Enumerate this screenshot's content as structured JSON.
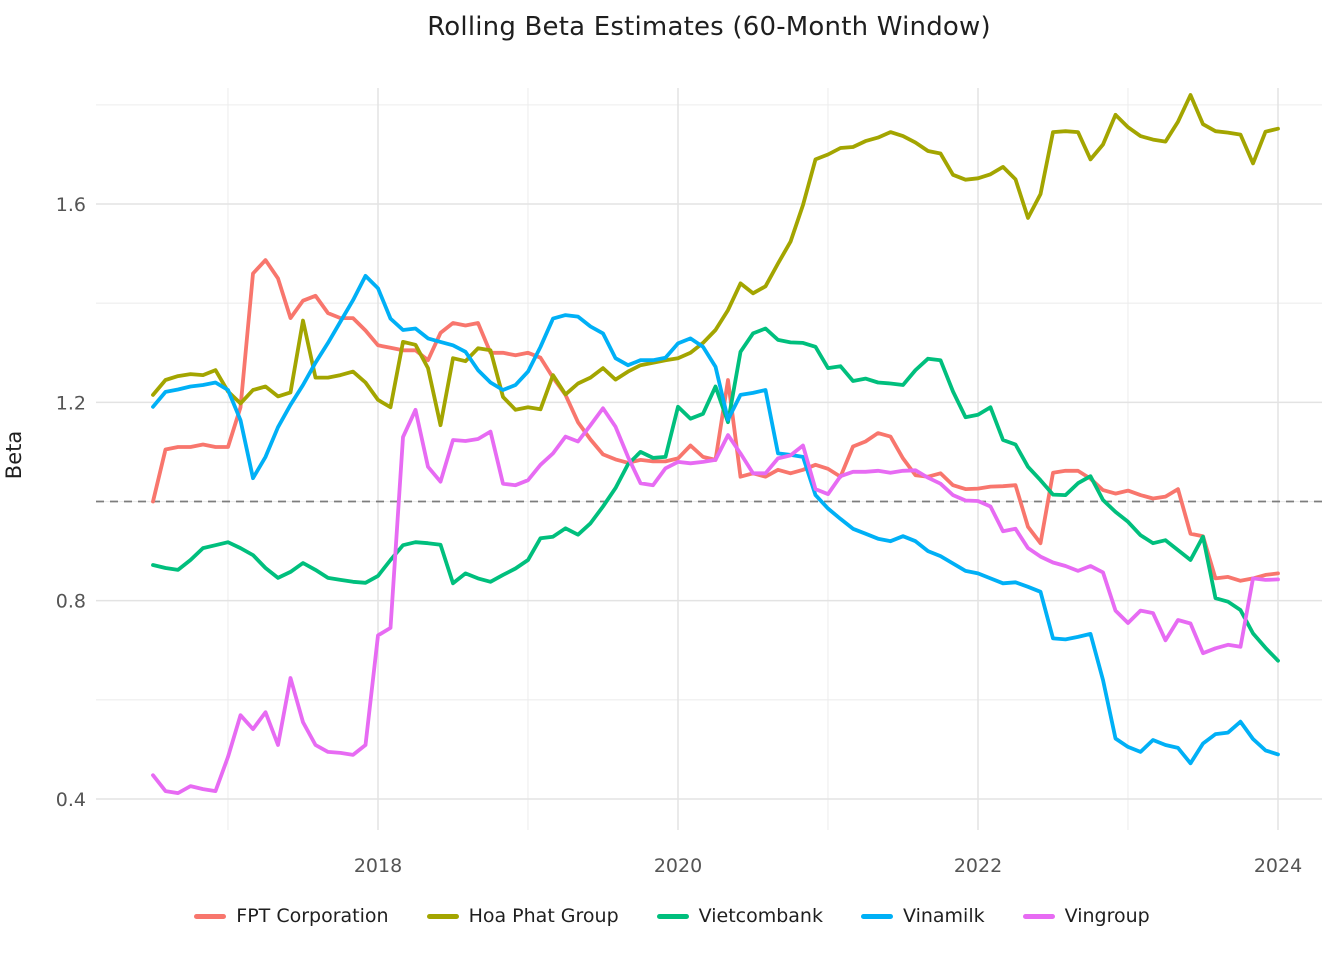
{
  "chart_data": {
    "type": "line",
    "title": "Rolling Beta Estimates (60-Month Window)",
    "xlabel": "",
    "ylabel": "Beta",
    "grid": true,
    "legend_position": "bottom",
    "x_start_year": 2016.5,
    "x_step_months": 1,
    "x_axis": {
      "tick_values": [
        2018,
        2020,
        2022,
        2024
      ],
      "tick_labels": [
        "2018",
        "2020",
        "2022",
        "2024"
      ],
      "minor_tick_values": [
        2017,
        2019,
        2021,
        2023
      ],
      "range": [
        2016.12,
        2024.29
      ]
    },
    "y_axis": {
      "tick_values": [
        0.4,
        0.8,
        1.2,
        1.6
      ],
      "tick_labels": [
        "0.4",
        "0.8",
        "1.2",
        "1.6"
      ],
      "minor_tick_values": [
        0.6,
        1.0,
        1.4,
        1.8
      ],
      "range": [
        0.337,
        1.834
      ]
    },
    "reference_line": {
      "value": 1.0,
      "style": "dashed",
      "color": "#7d7d7d"
    },
    "series": [
      {
        "name": "FPT Corporation",
        "color": "#F8766D",
        "values": [
          1.0,
          1.105,
          1.11,
          1.11,
          1.115,
          1.11,
          1.11,
          1.19,
          1.46,
          1.487,
          1.45,
          1.37,
          1.405,
          1.415,
          1.38,
          1.37,
          1.37,
          1.345,
          1.315,
          1.31,
          1.305,
          1.305,
          1.285,
          1.34,
          1.36,
          1.355,
          1.36,
          1.3,
          1.3,
          1.295,
          1.3,
          1.29,
          1.25,
          1.215,
          1.16,
          1.125,
          1.095,
          1.085,
          1.078,
          1.084,
          1.081,
          1.081,
          1.087,
          1.113,
          1.09,
          1.084,
          1.245,
          1.05,
          1.057,
          1.05,
          1.064,
          1.057,
          1.064,
          1.074,
          1.066,
          1.05,
          1.111,
          1.121,
          1.138,
          1.131,
          1.087,
          1.053,
          1.05,
          1.057,
          1.033,
          1.025,
          1.026,
          1.03,
          1.031,
          1.033,
          0.949,
          0.916,
          1.058,
          1.062,
          1.062,
          1.046,
          1.023,
          1.016,
          1.022,
          1.013,
          1.006,
          1.01,
          1.025,
          0.935,
          0.93,
          0.845,
          0.848,
          0.84,
          0.845,
          0.852,
          0.855
        ]
      },
      {
        "name": "Hoa Phat Group",
        "color": "#A3A500",
        "values": [
          1.215,
          1.245,
          1.253,
          1.257,
          1.255,
          1.265,
          1.222,
          1.198,
          1.225,
          1.232,
          1.212,
          1.22,
          1.365,
          1.25,
          1.25,
          1.255,
          1.262,
          1.24,
          1.205,
          1.19,
          1.322,
          1.316,
          1.269,
          1.154,
          1.289,
          1.283,
          1.309,
          1.305,
          1.211,
          1.185,
          1.19,
          1.186,
          1.255,
          1.216,
          1.238,
          1.25,
          1.269,
          1.246,
          1.262,
          1.275,
          1.28,
          1.285,
          1.289,
          1.3,
          1.32,
          1.346,
          1.386,
          1.44,
          1.42,
          1.434,
          1.48,
          1.524,
          1.598,
          1.69,
          1.7,
          1.713,
          1.715,
          1.727,
          1.734,
          1.745,
          1.737,
          1.724,
          1.707,
          1.702,
          1.659,
          1.649,
          1.652,
          1.66,
          1.675,
          1.65,
          1.572,
          1.62,
          1.745,
          1.747,
          1.745,
          1.69,
          1.72,
          1.78,
          1.755,
          1.737,
          1.73,
          1.726,
          1.766,
          1.82,
          1.761,
          1.747,
          1.744,
          1.74,
          1.682,
          1.746,
          1.752
        ]
      },
      {
        "name": "Vietcombank",
        "color": "#00BF7D",
        "values": [
          0.872,
          0.866,
          0.862,
          0.882,
          0.906,
          0.912,
          0.918,
          0.906,
          0.892,
          0.866,
          0.846,
          0.858,
          0.876,
          0.862,
          0.846,
          0.842,
          0.838,
          0.836,
          0.85,
          0.882,
          0.912,
          0.918,
          0.916,
          0.913,
          0.835,
          0.855,
          0.845,
          0.838,
          0.852,
          0.865,
          0.882,
          0.926,
          0.929,
          0.946,
          0.933,
          0.956,
          0.99,
          1.027,
          1.075,
          1.1,
          1.088,
          1.09,
          1.191,
          1.167,
          1.177,
          1.232,
          1.16,
          1.302,
          1.339,
          1.349,
          1.326,
          1.321,
          1.32,
          1.312,
          1.269,
          1.273,
          1.243,
          1.248,
          1.24,
          1.238,
          1.235,
          1.265,
          1.288,
          1.285,
          1.222,
          1.17,
          1.175,
          1.19,
          1.124,
          1.115,
          1.07,
          1.043,
          1.014,
          1.013,
          1.037,
          1.051,
          1.003,
          0.979,
          0.959,
          0.932,
          0.916,
          0.922,
          0.902,
          0.882,
          0.929,
          0.805,
          0.798,
          0.781,
          0.734,
          0.705,
          0.679
        ]
      },
      {
        "name": "Vinamilk",
        "color": "#00B0F6",
        "values": [
          1.191,
          1.221,
          1.226,
          1.232,
          1.235,
          1.24,
          1.225,
          1.164,
          1.047,
          1.09,
          1.15,
          1.195,
          1.235,
          1.28,
          1.32,
          1.363,
          1.406,
          1.455,
          1.43,
          1.369,
          1.346,
          1.349,
          1.329,
          1.322,
          1.315,
          1.302,
          1.265,
          1.24,
          1.225,
          1.235,
          1.262,
          1.312,
          1.369,
          1.376,
          1.373,
          1.353,
          1.339,
          1.289,
          1.275,
          1.285,
          1.285,
          1.29,
          1.319,
          1.329,
          1.312,
          1.272,
          1.165,
          1.215,
          1.219,
          1.225,
          1.097,
          1.094,
          1.09,
          1.013,
          0.986,
          0.965,
          0.945,
          0.935,
          0.925,
          0.92,
          0.93,
          0.92,
          0.9,
          0.89,
          0.875,
          0.86,
          0.855,
          0.845,
          0.835,
          0.837,
          0.828,
          0.818,
          0.724,
          0.722,
          0.727,
          0.733,
          0.64,
          0.522,
          0.505,
          0.495,
          0.519,
          0.509,
          0.503,
          0.472,
          0.512,
          0.531,
          0.534,
          0.556,
          0.521,
          0.498,
          0.49
        ]
      },
      {
        "name": "Vingroup",
        "color": "#E76BF3",
        "values": [
          0.448,
          0.416,
          0.412,
          0.426,
          0.42,
          0.416,
          0.485,
          0.569,
          0.541,
          0.575,
          0.509,
          0.644,
          0.555,
          0.509,
          0.495,
          0.493,
          0.489,
          0.509,
          0.73,
          0.745,
          1.13,
          1.185,
          1.07,
          1.04,
          1.124,
          1.122,
          1.126,
          1.141,
          1.036,
          1.033,
          1.043,
          1.074,
          1.097,
          1.131,
          1.121,
          1.154,
          1.188,
          1.151,
          1.09,
          1.037,
          1.033,
          1.067,
          1.08,
          1.077,
          1.08,
          1.084,
          1.134,
          1.097,
          1.057,
          1.057,
          1.087,
          1.093,
          1.113,
          1.025,
          1.015,
          1.051,
          1.06,
          1.06,
          1.062,
          1.058,
          1.062,
          1.063,
          1.048,
          1.036,
          1.013,
          1.002,
          1.001,
          0.99,
          0.94,
          0.945,
          0.906,
          0.889,
          0.877,
          0.87,
          0.86,
          0.87,
          0.857,
          0.78,
          0.755,
          0.78,
          0.775,
          0.72,
          0.761,
          0.754,
          0.694,
          0.704,
          0.711,
          0.707,
          0.845,
          0.842,
          0.843
        ]
      }
    ]
  },
  "colors": {
    "background": "#ffffff",
    "grid_major": "#e3e3e3",
    "grid_minor": "#ededed",
    "tick_label": "#555555",
    "text": "#1f1f1f"
  }
}
